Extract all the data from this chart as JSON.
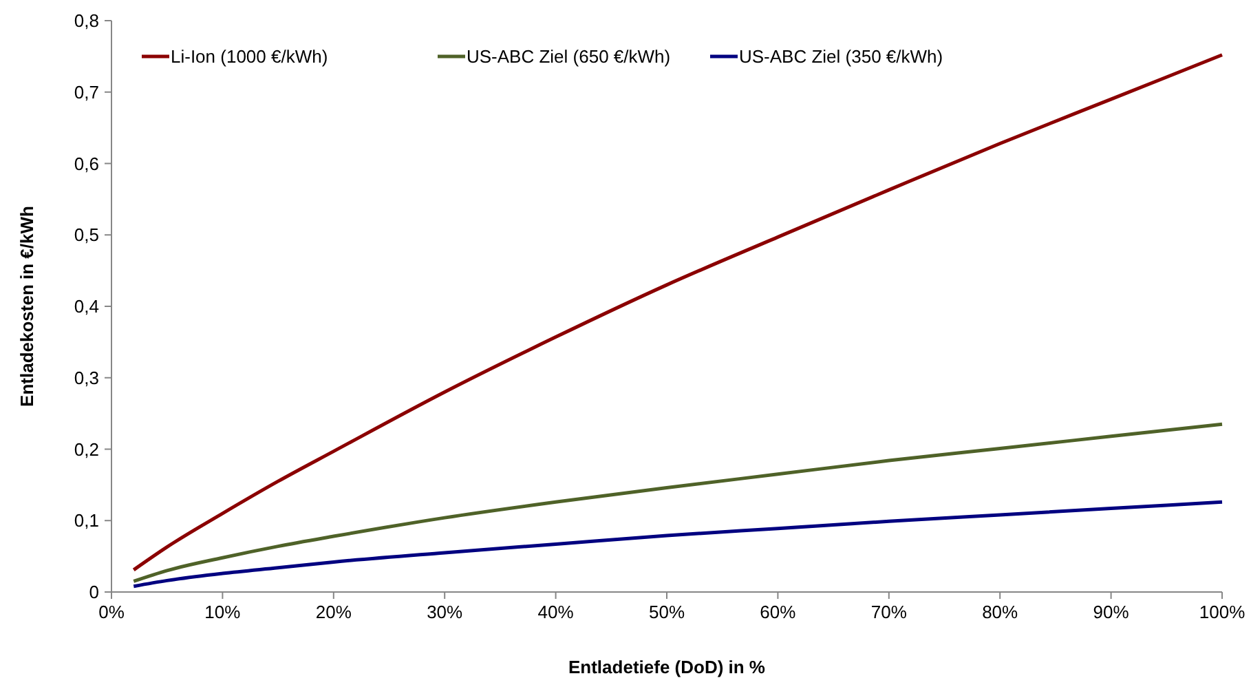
{
  "chart_data": {
    "type": "line",
    "xlabel": "Entladetiefe (DoD) in %",
    "ylabel": "Entladekosten  in €/kWh",
    "x": [
      2,
      5,
      10,
      15,
      20,
      30,
      40,
      50,
      60,
      70,
      80,
      90,
      100
    ],
    "xlim": [
      0,
      100
    ],
    "xticks": [
      {
        "value": 0,
        "label": "0%"
      },
      {
        "value": 10,
        "label": "10%"
      },
      {
        "value": 20,
        "label": "20%"
      },
      {
        "value": 30,
        "label": "30%"
      },
      {
        "value": 40,
        "label": "40%"
      },
      {
        "value": 50,
        "label": "50%"
      },
      {
        "value": 60,
        "label": "60%"
      },
      {
        "value": 70,
        "label": "70%"
      },
      {
        "value": 80,
        "label": "80%"
      },
      {
        "value": 90,
        "label": "90%"
      },
      {
        "value": 100,
        "label": "100%"
      }
    ],
    "ylim": [
      0,
      0.8
    ],
    "yticks": [
      0,
      {
        "value": 0.1,
        "label": "0,1"
      },
      {
        "value": 0.2,
        "label": "0,2"
      },
      {
        "value": 0.3,
        "label": "0,3"
      },
      {
        "value": 0.4,
        "label": "0,4"
      },
      {
        "value": 0.5,
        "label": "0,5"
      },
      {
        "value": 0.6,
        "label": "0,6"
      },
      {
        "value": 0.7,
        "label": "0,7"
      },
      {
        "value": 0.8,
        "label": "0,8"
      }
    ],
    "grid": false,
    "legend": "top left",
    "marker": "none",
    "line_style": "solid",
    "series": [
      {
        "name": "Li-Ion (1000 €/kWh)",
        "color": "#8b0000",
        "values": [
          0.031,
          0.063,
          0.11,
          0.155,
          0.197,
          0.28,
          0.357,
          0.43,
          0.497,
          0.563,
          0.628,
          0.69,
          0.752
        ]
      },
      {
        "name": "US-ABC Ziel (650 €/kWh)",
        "color": "#4f6228",
        "values": [
          0.015,
          0.03,
          0.048,
          0.064,
          0.078,
          0.104,
          0.126,
          0.146,
          0.165,
          0.184,
          0.201,
          0.218,
          0.235
        ]
      },
      {
        "name": "US-ABC Ziel (350 €/kWh)",
        "color": "#000080",
        "values": [
          0.008,
          0.016,
          0.026,
          0.034,
          0.042,
          0.055,
          0.067,
          0.079,
          0.089,
          0.099,
          0.108,
          0.117,
          0.126
        ]
      }
    ]
  }
}
